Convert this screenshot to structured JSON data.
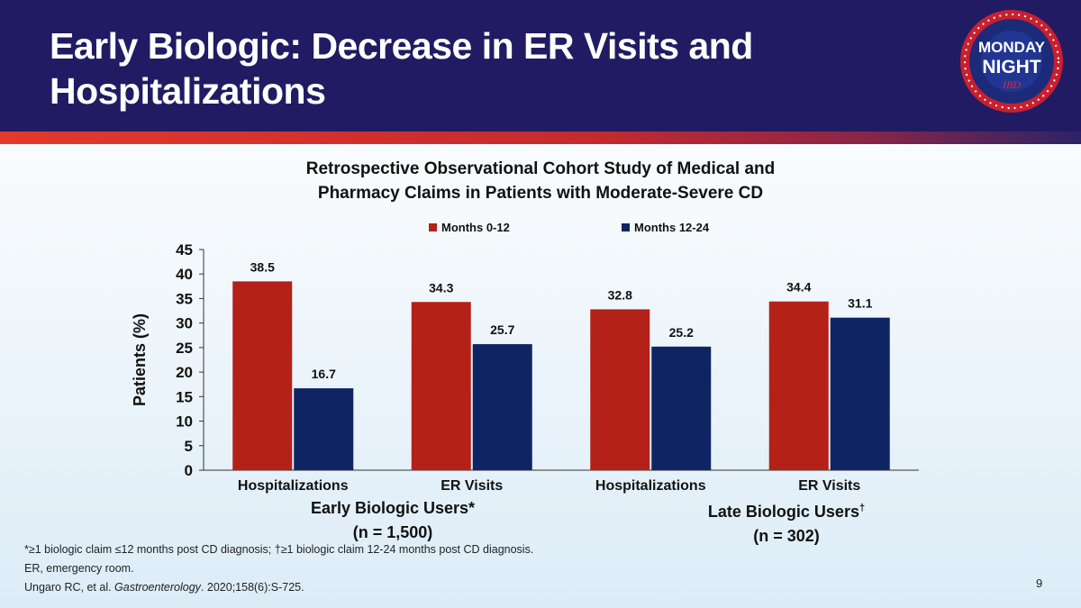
{
  "slide": {
    "title": "Early Biologic: Decrease in ER Visits and Hospitalizations",
    "logo_line1": "MONDAY",
    "logo_line2": "NIGHT",
    "logo_line3": "IBD",
    "page_number": "9"
  },
  "colors": {
    "header_bg": "#211b63",
    "series_1": "#b42118",
    "series_2": "#0f2563"
  },
  "chart_data": {
    "type": "bar",
    "title_line1": "Retrospective Observational Cohort Study of Medical and",
    "title_line2": "Pharmacy Claims in Patients with Moderate-Severe CD",
    "categories": [
      "Hospitalizations",
      "ER Visits",
      "Hospitalizations",
      "ER Visits"
    ],
    "series": [
      {
        "name": "Months 0-12",
        "values": [
          38.5,
          34.3,
          32.8,
          34.4
        ]
      },
      {
        "name": "Months 12-24",
        "values": [
          16.7,
          25.7,
          25.2,
          31.1
        ]
      }
    ],
    "value_labels": [
      [
        "38.5",
        "34.3",
        "32.8",
        "34.4"
      ],
      [
        "16.7",
        "25.7",
        "25.2",
        "31.1"
      ]
    ],
    "ylabel": "Patients (%)",
    "ylim": [
      0,
      45
    ],
    "yticks": [
      0,
      5,
      10,
      15,
      20,
      25,
      30,
      35,
      40,
      45
    ],
    "groups": [
      {
        "name": "Early Biologic Users",
        "mark": "*",
        "n": "(n = 1,500)"
      },
      {
        "name": "Late Biologic Users",
        "mark": "†",
        "n": "(n = 302)"
      }
    ]
  },
  "footnotes": {
    "line1": "*≥1 biologic claim ≤12 months post CD diagnosis; †≥1 biologic claim 12-24 months post CD diagnosis.",
    "line2": "ER, emergency room.",
    "citation_authors": "Ungaro RC, et al. ",
    "citation_journal": "Gastroenterology",
    "citation_rest": ". 2020;158(6):S-725."
  }
}
